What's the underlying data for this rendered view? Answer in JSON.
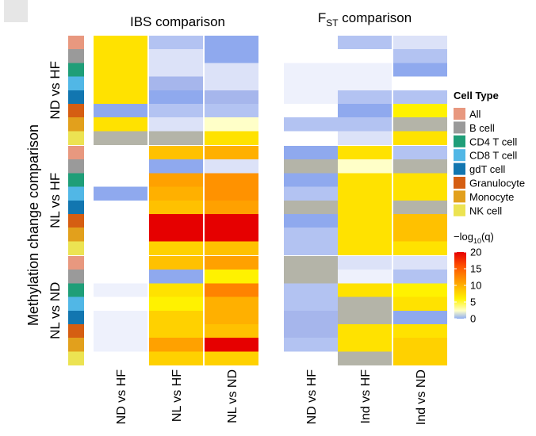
{
  "chart_data": {
    "type": "heatmap",
    "y_label": "Methylation change comparison",
    "legend_title": "Cell Type",
    "cell_types": [
      "All",
      "B cell",
      "CD4 T cell",
      "CD8 T cell",
      "gdT cell",
      "Granulocyte",
      "Monocyte",
      "NK cell"
    ],
    "cell_type_colors": [
      "#E8987F",
      "#9A9A9A",
      "#1F9E78",
      "#51B7E6",
      "#1276B0",
      "#D55E12",
      "#E2A01C",
      "#ECE352"
    ],
    "row_groups": [
      "ND vs HF",
      "NL vs HF",
      "NL vs ND"
    ],
    "panels": [
      {
        "title": "IBS comparison",
        "columns": [
          "ND vs HF",
          "NL vs HF",
          "NL vs ND"
        ],
        "values": [
          [
            [
              7,
              1,
              2
            ],
            [
              7,
              0.5,
              2
            ],
            [
              7,
              0.5,
              0.5
            ],
            [
              7,
              1.5,
              0.5
            ],
            [
              7,
              2,
              1.5
            ],
            [
              2,
              1,
              1
            ],
            [
              7,
              0.5,
              3
            ],
            [
              2.5,
              2.5,
              7
            ]
          ],
          [
            [
              0,
              9,
              10
            ],
            [
              0,
              2,
              0.5
            ],
            [
              0,
              11,
              12
            ],
            [
              2,
              10,
              12
            ],
            [
              0,
              9,
              11
            ],
            [
              0,
              20,
              20
            ],
            [
              0,
              20,
              20
            ],
            [
              0,
              8,
              9
            ]
          ],
          [
            [
              0,
              9,
              11
            ],
            [
              0,
              2,
              6
            ],
            [
              0.3,
              7,
              13
            ],
            [
              0,
              6,
              10
            ],
            [
              0.3,
              8,
              10
            ],
            [
              0.3,
              8,
              9
            ],
            [
              0.3,
              11,
              20
            ],
            [
              0,
              8,
              8
            ]
          ]
        ]
      },
      {
        "title": "FST comparison",
        "title_main": "F",
        "title_sub": "ST",
        "title_rest": " comparison",
        "columns": [
          "ND vs HF",
          "Ind vs HF",
          "Ind vs ND"
        ],
        "values": [
          [
            [
              0,
              1,
              0.5
            ],
            [
              0,
              0,
              1
            ],
            [
              0.3,
              0.3,
              2
            ],
            [
              0.3,
              0.3,
              0
            ],
            [
              0.3,
              1,
              1
            ],
            [
              0,
              2,
              6
            ],
            [
              1,
              1,
              2.5
            ],
            [
              0,
              0.5,
              7
            ]
          ],
          [
            [
              2,
              7,
              1
            ],
            [
              2.5,
              3,
              2.5
            ],
            [
              2,
              7,
              7
            ],
            [
              1,
              7,
              7
            ],
            [
              2.5,
              7,
              2.5
            ],
            [
              2,
              7,
              9
            ],
            [
              1,
              7,
              9
            ],
            [
              1,
              7,
              7
            ]
          ],
          [
            [
              2.5,
              0.5,
              0.5
            ],
            [
              2.5,
              0.3,
              1
            ],
            [
              1,
              7,
              6
            ],
            [
              1,
              2.5,
              7
            ],
            [
              1.5,
              2.5,
              2
            ],
            [
              1.5,
              7,
              7
            ],
            [
              1,
              7,
              8
            ],
            [
              0,
              2.5,
              8
            ]
          ]
        ]
      }
    ],
    "colorbar": {
      "label": "−log₁₀(q)",
      "label_main": "−log",
      "label_sub": "10",
      "label_rest": "(q)",
      "range": [
        0,
        20
      ],
      "ticks": [
        20,
        15,
        10,
        5,
        0
      ],
      "colors": [
        "#8FAEF2",
        "#FFFFC8",
        "#FFF200",
        "#FFB000",
        "#FF5500",
        "#E60000"
      ]
    }
  }
}
